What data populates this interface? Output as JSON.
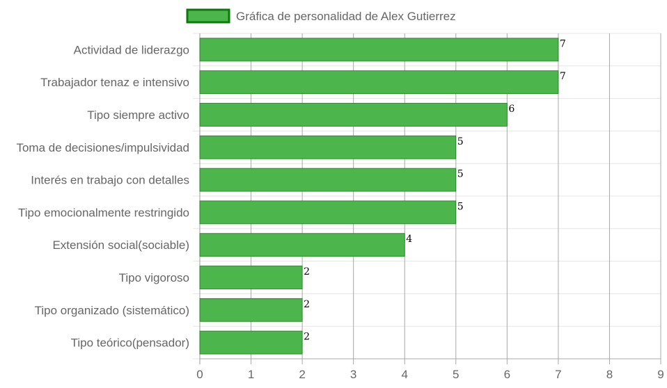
{
  "chart_data": {
    "type": "bar",
    "orientation": "horizontal",
    "legend": {
      "label": "Gráfica de personalidad de Alex Gutierrez",
      "position": "top"
    },
    "categories": [
      "Actividad de liderazgo",
      "Trabajador tenaz e intensivo",
      "Tipo siempre activo",
      "Toma de decisiones/impulsividad",
      "Interés en trabajo con detalles",
      "Tipo emocionalmente restringido",
      "Extensión social(sociable)",
      "Tipo vigoroso",
      "Tipo organizado (sistemático)",
      "Tipo teórico(pensador)"
    ],
    "series": [
      {
        "name": "Gráfica de personalidad de Alex Gutierrez",
        "values": [
          7,
          7,
          6,
          5,
          5,
          5,
          4,
          2,
          2,
          2
        ]
      }
    ],
    "xlim": [
      0,
      9
    ],
    "xticks": [
      "0",
      "1",
      "2",
      "3",
      "4",
      "5",
      "6",
      "7",
      "8",
      "9"
    ],
    "grid": true,
    "colors": {
      "bar_fill": "#4cb54c",
      "bar_border": "#1f7a1f",
      "legend_border": "#0a7a0a"
    }
  }
}
